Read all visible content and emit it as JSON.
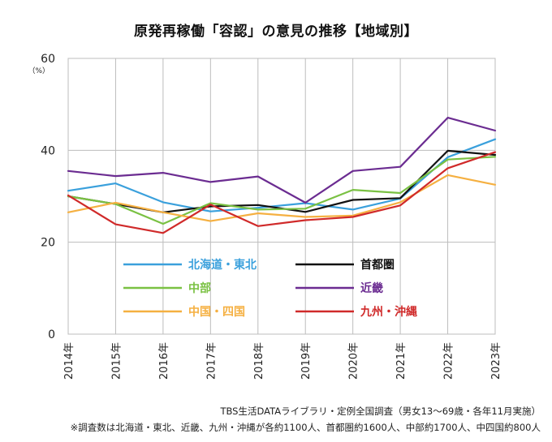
{
  "title": "原発再稼働「容認」の意見の推移【地域別】",
  "source_line1": "TBS生活DATAライブラリ・定例全国調査（男女13〜69歳・各年11月実施）",
  "source_line2": "※調査数は北海道・東北、近畿、九州・沖縄が各約1100人、首都圏約1600人、中部約1700人、中四国約800人",
  "chart_data": {
    "type": "line",
    "title": "原発再稼働「容認」の意見の推移【地域別】",
    "unit": "（%）",
    "ylim": [
      0,
      60
    ],
    "yticks": [
      "0",
      "20",
      "40",
      "60"
    ],
    "grid": true,
    "legend_position": "inside-bottom",
    "categories": [
      "2014年",
      "2015年",
      "2016年",
      "2017年",
      "2018年",
      "2019年",
      "2020年",
      "2021年",
      "2022年",
      "2023年"
    ],
    "series": [
      {
        "name": "北海道・東北",
        "color": "#3aa0dc",
        "values": [
          31.2,
          32.8,
          28.7,
          26.7,
          27.5,
          28.5,
          27.1,
          29.5,
          38.5,
          42.4
        ]
      },
      {
        "name": "首都圏",
        "color": "#111111",
        "values": [
          30.0,
          28.3,
          26.5,
          27.8,
          28.1,
          26.6,
          29.2,
          29.6,
          39.9,
          39.0
        ]
      },
      {
        "name": "中部",
        "color": "#7ac143",
        "values": [
          30.0,
          28.3,
          24.0,
          28.5,
          27.1,
          27.3,
          31.4,
          30.7,
          38.0,
          38.6
        ]
      },
      {
        "name": "近畿",
        "color": "#6b2c91",
        "values": [
          35.5,
          34.4,
          35.1,
          33.1,
          34.3,
          28.6,
          35.5,
          36.4,
          47.1,
          44.3
        ]
      },
      {
        "name": "中国・四国",
        "color": "#f5b041",
        "values": [
          26.5,
          28.6,
          26.5,
          24.6,
          26.3,
          25.5,
          25.8,
          28.7,
          34.6,
          32.5
        ]
      },
      {
        "name": "九州・沖縄",
        "color": "#d02a2a",
        "values": [
          30.2,
          23.9,
          22.0,
          28.2,
          23.5,
          24.8,
          25.5,
          28.0,
          36.1,
          39.6
        ]
      }
    ]
  }
}
